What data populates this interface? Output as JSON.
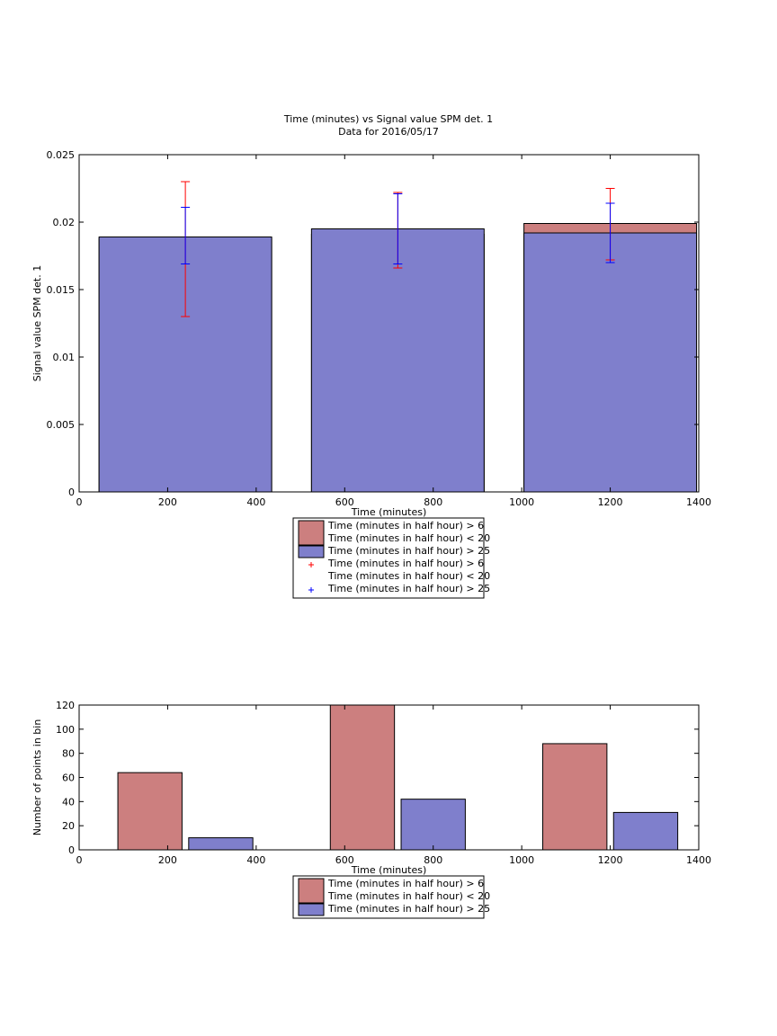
{
  "chart_data": [
    {
      "type": "bar",
      "title": "Time (minutes) vs Signal value SPM det. 1",
      "subtitle": "Data for 2016/05/17",
      "xlabel": "Time (minutes)",
      "ylabel": "Signal value SPM det. 1",
      "xlim": [
        0,
        1400
      ],
      "ylim": [
        0,
        0.025
      ],
      "xticks": [
        "0",
        "200",
        "400",
        "600",
        "800",
        "1000",
        "1200",
        "1400"
      ],
      "yticks": [
        "0",
        "0.005",
        "0.01",
        "0.015",
        "0.02",
        "0.025"
      ],
      "xtick_values": [
        0,
        200,
        400,
        600,
        800,
        1000,
        1200,
        1400
      ],
      "ytick_values": [
        0,
        0.005,
        0.01,
        0.015,
        0.02,
        0.025
      ],
      "x": [
        240,
        720,
        1200
      ],
      "bar_width": 390,
      "series": [
        {
          "name": "Time (minutes in half hour) > 6 Time (minutes in half hour) < 20",
          "color": "#cc7f7f",
          "values": [
            0.0188,
            0.0191,
            0.0199
          ],
          "error_low": [
            0.013,
            0.0166,
            0.0172
          ],
          "error_high": [
            0.023,
            0.0222,
            0.0225
          ],
          "error_color": "#ff0000"
        },
        {
          "name": "Time (minutes in half hour) > 25",
          "color": "#7f7fcc",
          "values": [
            0.0189,
            0.0195,
            0.0192
          ],
          "error_low": [
            0.0169,
            0.0169,
            0.017
          ],
          "error_high": [
            0.0211,
            0.0221,
            0.0214
          ],
          "error_color": "#0000ff"
        }
      ],
      "legend": {
        "placement": "bottom",
        "entries": [
          {
            "lines": [
              "Time (minutes in half hour) > 6",
              "Time (minutes in half hour) < 20"
            ],
            "swatch": "#cc7f7f",
            "kind": "patch"
          },
          {
            "lines": [
              "Time (minutes in half hour) > 25"
            ],
            "swatch": "#7f7fcc",
            "kind": "patch"
          },
          {
            "lines": [
              "Time (minutes in half hour) > 6",
              "Time (minutes in half hour) < 20"
            ],
            "swatch": "#ff0000",
            "kind": "marker"
          },
          {
            "lines": [
              "Time (minutes in half hour) > 25"
            ],
            "swatch": "#0000ff",
            "kind": "marker"
          }
        ]
      }
    },
    {
      "type": "bar",
      "title": "",
      "xlabel": "Time (minutes)",
      "ylabel": "Number of points in bin",
      "xlim": [
        0,
        1400
      ],
      "ylim": [
        0,
        120
      ],
      "xticks": [
        "0",
        "200",
        "400",
        "600",
        "800",
        "1000",
        "1200",
        "1400"
      ],
      "yticks": [
        "0",
        "20",
        "40",
        "60",
        "80",
        "100",
        "120"
      ],
      "xtick_values": [
        0,
        200,
        400,
        600,
        800,
        1000,
        1200,
        1400
      ],
      "ytick_values": [
        0,
        20,
        40,
        60,
        80,
        100,
        120
      ],
      "bar_width": 145,
      "series": [
        {
          "name": "Time (minutes in half hour) > 6 Time (minutes in half hour) < 20",
          "color": "#cc7f7f",
          "x": [
            160,
            640,
            1120
          ],
          "values": [
            64,
            120,
            88
          ]
        },
        {
          "name": "Time (minutes in half hour) > 25",
          "color": "#7f7fcc",
          "x": [
            320,
            800,
            1280
          ],
          "values": [
            10,
            42,
            31
          ]
        }
      ],
      "legend": {
        "placement": "bottom",
        "entries": [
          {
            "lines": [
              "Time (minutes in half hour) > 6",
              "Time (minutes in half hour) < 20"
            ],
            "swatch": "#cc7f7f",
            "kind": "patch"
          },
          {
            "lines": [
              "Time (minutes in half hour) > 25"
            ],
            "swatch": "#7f7fcc",
            "kind": "patch"
          }
        ]
      }
    }
  ]
}
